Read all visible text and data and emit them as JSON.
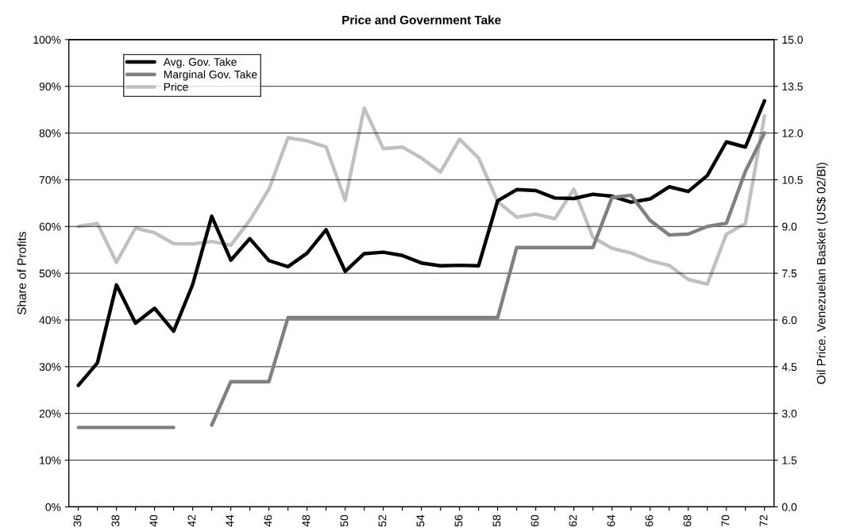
{
  "chart_data": {
    "type": "line",
    "title": "Price and Government Take",
    "ylabel": "Share of Profits",
    "y2label": "Oil Price. Venezuelan Basket (US$ 02/Bl)",
    "categories": [
      "36",
      null,
      "38",
      null,
      "40",
      null,
      "42",
      null,
      "44",
      null,
      "46",
      null,
      "48",
      null,
      "50",
      null,
      "52",
      null,
      "54",
      null,
      "56",
      null,
      "58",
      null,
      "60",
      null,
      "62",
      null,
      "64",
      null,
      "66",
      null,
      "68",
      null,
      "70",
      null,
      "72"
    ],
    "series": [
      {
        "name": "Avg. Gov. Take",
        "color": "#000000",
        "values": [
          26,
          30.8,
          47.5,
          39.3,
          42.5,
          37.6,
          47.6,
          62.2,
          52.8,
          57.4,
          52.7,
          51.4,
          54.3,
          59.3,
          50.4,
          54.2,
          54.5,
          53.8,
          52.2,
          51.6,
          51.7,
          51.6,
          65.5,
          67.9,
          67.7,
          66.1,
          66.0,
          66.9,
          66.5,
          65.2,
          65.9,
          68.5,
          67.5,
          70.9,
          78.1,
          77.0,
          86.9
        ]
      },
      {
        "name": "Marginal Gov. Take",
        "color": "#808080",
        "values": [
          17,
          17,
          17,
          17,
          17,
          17,
          null,
          17.5,
          26.8,
          26.8,
          26.8,
          40.5,
          40.5,
          40.5,
          40.5,
          40.5,
          40.5,
          40.5,
          40.5,
          40.5,
          40.5,
          40.5,
          40.5,
          55.5,
          55.5,
          55.5,
          55.5,
          55.5,
          66.2,
          66.7,
          61.3,
          58.2,
          58.4,
          60,
          60.7,
          71.8,
          80
        ]
      },
      {
        "name": "Price",
        "color": "#c0c0c0",
        "axis": "y2",
        "values": [
          9.0,
          9.1,
          7.85,
          8.95,
          8.8,
          8.45,
          8.44,
          8.52,
          8.4,
          9.2,
          10.2,
          11.85,
          11.75,
          11.55,
          9.85,
          12.8,
          11.5,
          11.55,
          11.2,
          10.75,
          11.8,
          11.2,
          9.8,
          9.3,
          9.4,
          9.25,
          10.2,
          8.65,
          8.3,
          8.15,
          7.9,
          7.75,
          7.3,
          7.15,
          8.75,
          9.1,
          12.55
        ]
      }
    ],
    "ylim": [
      0,
      100
    ],
    "yticks": [
      {
        "value": 0,
        "label": "0%"
      },
      {
        "value": 10,
        "label": "10%"
      },
      {
        "value": 20,
        "label": "20%"
      },
      {
        "value": 30,
        "label": "30%"
      },
      {
        "value": 40,
        "label": "40%"
      },
      {
        "value": 50,
        "label": "50%"
      },
      {
        "value": 60,
        "label": "60%"
      },
      {
        "value": 70,
        "label": "70%"
      },
      {
        "value": 80,
        "label": "80%"
      },
      {
        "value": 90,
        "label": "90%"
      },
      {
        "value": 100,
        "label": "100%"
      }
    ],
    "y2lim": [
      0,
      15
    ],
    "y2ticks": [
      {
        "value": 0,
        "label": "0.0"
      },
      {
        "value": 1.5,
        "label": "1.5"
      },
      {
        "value": 3,
        "label": "3.0"
      },
      {
        "value": 4.5,
        "label": "4.5"
      },
      {
        "value": 6,
        "label": "6.0"
      },
      {
        "value": 7.5,
        "label": "7.5"
      },
      {
        "value": 9,
        "label": "9.0"
      },
      {
        "value": 10.5,
        "label": "10.5"
      },
      {
        "value": 12,
        "label": "12.0"
      },
      {
        "value": 13.5,
        "label": "13.5"
      },
      {
        "value": 15,
        "label": "15.0"
      }
    ],
    "grid": "y",
    "legend": "top left",
    "marker": "none",
    "line_style": "solid"
  }
}
